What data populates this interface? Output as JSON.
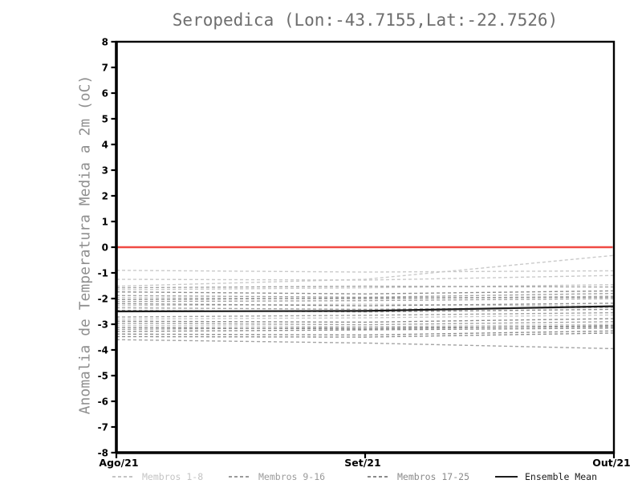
{
  "chart_data": {
    "type": "line",
    "title": "Seropedica (Lon:-43.7155,Lat:-22.7526)",
    "ylabel": "Anomalia de Temperatura Media a 2m (oC)",
    "x_categories": [
      "Ago/21",
      "Set/21",
      "Out/21"
    ],
    "ylim": [
      -8,
      8
    ],
    "yticks": [
      8,
      7,
      6,
      5,
      4,
      3,
      2,
      1,
      0,
      -1,
      -2,
      -3,
      -4,
      -5,
      -6,
      -7,
      -8
    ],
    "grid": false,
    "legend_position": "bottom",
    "axis_color": "#000000",
    "title_color": "#6e6e6e",
    "ylabel_color": "#8f8f8f",
    "zero_line": {
      "value": 0,
      "color": "#f04a44"
    },
    "series_groups": [
      {
        "name": "Membros 1-8",
        "color": "#c7c7c7",
        "style": "dashed",
        "members": [
          [
            -0.9,
            -0.97,
            -0.92
          ],
          [
            -1.25,
            -1.28,
            -1.1
          ],
          [
            -1.52,
            -1.25,
            -0.32
          ],
          [
            -1.66,
            -1.58,
            -1.46
          ],
          [
            -1.96,
            -2.02,
            -1.9
          ],
          [
            -2.28,
            -2.22,
            -2.3
          ],
          [
            -2.8,
            -2.75,
            -2.64
          ],
          [
            -3.04,
            -3.1,
            -3.0
          ]
        ]
      },
      {
        "name": "Membros 9-16",
        "color": "#9f9f9f",
        "style": "dashed",
        "members": [
          [
            -1.58,
            -1.52,
            -1.55
          ],
          [
            -1.88,
            -1.95,
            -1.8
          ],
          [
            -2.12,
            -2.08,
            -2.0
          ],
          [
            -2.36,
            -2.42,
            -2.34
          ],
          [
            -2.72,
            -2.65,
            -2.55
          ],
          [
            -2.96,
            -3.02,
            -2.9
          ],
          [
            -3.2,
            -3.12,
            -3.1
          ],
          [
            -3.6,
            -3.73,
            -3.95
          ]
        ]
      },
      {
        "name": "Membros 17-25",
        "color": "#8a8a8a",
        "style": "dashed",
        "members": [
          [
            -1.74,
            -1.82,
            -1.7
          ],
          [
            -2.04,
            -1.98,
            -1.94
          ],
          [
            -2.2,
            -2.28,
            -2.18
          ],
          [
            -2.46,
            -2.52,
            -2.42
          ],
          [
            -2.88,
            -2.92,
            -2.78
          ],
          [
            -3.12,
            -3.18,
            -3.05
          ],
          [
            -3.28,
            -3.22,
            -3.15
          ],
          [
            -3.38,
            -3.42,
            -3.26
          ],
          [
            -3.48,
            -3.5,
            -3.34
          ]
        ]
      }
    ],
    "ensemble_mean": {
      "name": "Ensemble Mean",
      "color": "#1c1c1c",
      "style": "solid",
      "values": [
        -2.5,
        -2.48,
        -2.3
      ]
    },
    "legend": [
      {
        "label": "Membros 1-8",
        "color": "#c4c4c4",
        "style": "dashed"
      },
      {
        "label": "Membros 9-16",
        "color": "#9b9b9b",
        "style": "dashed"
      },
      {
        "label": "Membros 17-25",
        "color": "#8a8a8a",
        "style": "dashed"
      },
      {
        "label": "Ensemble Mean",
        "color": "#1c1c1c",
        "style": "solid"
      }
    ]
  }
}
